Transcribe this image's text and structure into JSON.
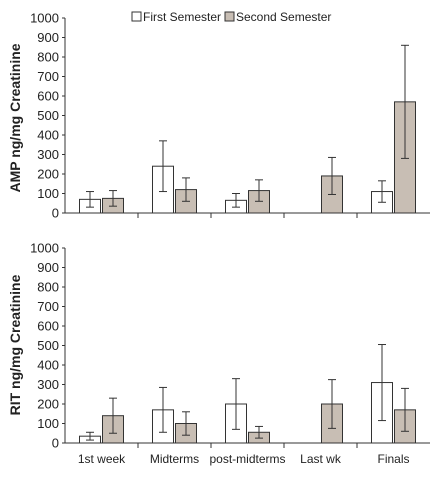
{
  "legend": [
    {
      "label": "First Semester",
      "color": "#ffffff"
    },
    {
      "label": "Second Semester",
      "color": "#c8beb4"
    }
  ],
  "chart_data": [
    {
      "type": "bar",
      "title": "",
      "ylabel": "AMP ng/mg Creatinine",
      "ylim": [
        0,
        1000
      ],
      "yticks": [
        0,
        100,
        200,
        300,
        400,
        500,
        600,
        700,
        800,
        900,
        1000
      ],
      "categories": [
        "1st week",
        "Midterms",
        "post-midterms",
        "Last wk",
        "Finals"
      ],
      "show_category_labels": false,
      "series": [
        {
          "name": "First Semester",
          "color": "#ffffff",
          "values": [
            70,
            240,
            65,
            null,
            110
          ],
          "errors": [
            40,
            130,
            35,
            null,
            55
          ]
        },
        {
          "name": "Second Semester",
          "color": "#c8beb4",
          "values": [
            75,
            120,
            115,
            190,
            570
          ],
          "errors": [
            40,
            60,
            55,
            95,
            290
          ]
        }
      ]
    },
    {
      "type": "bar",
      "title": "",
      "ylabel": "RIT ng/mg Creatinine",
      "ylim": [
        0,
        1000
      ],
      "yticks": [
        0,
        100,
        200,
        300,
        400,
        500,
        600,
        700,
        800,
        900,
        1000
      ],
      "categories": [
        "1st week",
        "Midterms",
        "post-midterms",
        "Last wk",
        "Finals"
      ],
      "show_category_labels": true,
      "series": [
        {
          "name": "First Semester",
          "color": "#ffffff",
          "values": [
            35,
            170,
            200,
            null,
            310
          ],
          "errors": [
            20,
            115,
            130,
            null,
            195
          ]
        },
        {
          "name": "Second Semester",
          "color": "#c8beb4",
          "values": [
            140,
            100,
            55,
            200,
            170
          ],
          "errors": [
            90,
            60,
            30,
            125,
            110
          ]
        }
      ]
    }
  ]
}
